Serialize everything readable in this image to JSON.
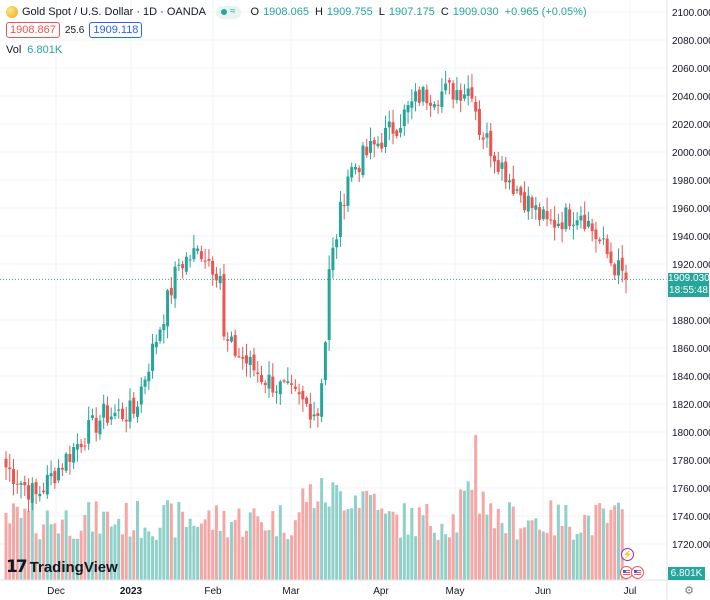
{
  "header": {
    "symbol_title": "Gold Spot / U.S. Dollar · 1D · OANDA",
    "flag_icon_1": "dot-icon",
    "flag_icon_2": "≈",
    "ohlc": [
      {
        "label": "O",
        "value": "1908.065"
      },
      {
        "label": "H",
        "value": "1909.755"
      },
      {
        "label": "L",
        "value": "1907.175"
      },
      {
        "label": "C",
        "value": "1909.030"
      }
    ],
    "change": "+0.965 (+0.05%)",
    "bid": "1908.867",
    "spread": "25.6",
    "ask": "1909.118",
    "volume_label": "Vol",
    "volume_value": "6.801K"
  },
  "price_axis": {
    "ticks": [
      "2100.000",
      "2080.000",
      "2060.000",
      "2040.000",
      "2020.000",
      "2000.000",
      "1980.000",
      "1960.000",
      "1940.000",
      "1920.000",
      "1880.000",
      "1860.000",
      "1840.000",
      "1820.000",
      "1800.000",
      "1780.000",
      "1760.000",
      "1740.000",
      "1720.000"
    ],
    "current_price": "1909.030",
    "countdown": "18:55:48",
    "volume_tag": "6.801K"
  },
  "time_axis": {
    "labels": [
      "Dec",
      "2023",
      "Feb",
      "Mar",
      "Apr",
      "May",
      "Jun",
      "Jul"
    ]
  },
  "branding": {
    "logo_text": "TradingView",
    "logo_mark": "17"
  },
  "colors": {
    "up": "#26a69a",
    "down": "#ef5350",
    "up_volume": "#8fd0c8",
    "down_volume": "#f5a7a5",
    "accent": "#2962ff"
  },
  "chart_data": {
    "type": "candlestick",
    "ylim": [
      1700,
      2100
    ],
    "grid": true,
    "current_price": 1909.03,
    "ohlc_key_points": [
      {
        "date": "2022-11-16",
        "close": 1775
      },
      {
        "date": "2022-11-25",
        "close": 1754
      },
      {
        "date": "2022-12-13",
        "close": 1812
      },
      {
        "date": "2022-12-27",
        "close": 1814
      },
      {
        "date": "2023-01-13",
        "close": 1920
      },
      {
        "date": "2023-01-26",
        "close": 1930
      },
      {
        "date": "2023-02-02",
        "close": 1913
      },
      {
        "date": "2023-02-03",
        "close": 1865
      },
      {
        "date": "2023-02-28",
        "close": 1826
      },
      {
        "date": "2023-03-08",
        "close": 1814
      },
      {
        "date": "2023-03-10",
        "close": 1866
      },
      {
        "date": "2023-03-13",
        "close": 1913
      },
      {
        "date": "2023-03-20",
        "close": 1985
      },
      {
        "date": "2023-04-05",
        "close": 2020
      },
      {
        "date": "2023-04-13",
        "close": 2040
      },
      {
        "date": "2023-05-03",
        "close": 2046
      },
      {
        "date": "2023-05-05",
        "close": 2017
      },
      {
        "date": "2023-05-19",
        "close": 1977
      },
      {
        "date": "2023-06-02",
        "close": 1948
      },
      {
        "date": "2023-06-15",
        "close": 1958
      },
      {
        "date": "2023-06-26",
        "close": 1922
      },
      {
        "date": "2023-06-30",
        "close": 1909.03
      }
    ],
    "volume_peak": "May",
    "volume_current": 6801
  }
}
